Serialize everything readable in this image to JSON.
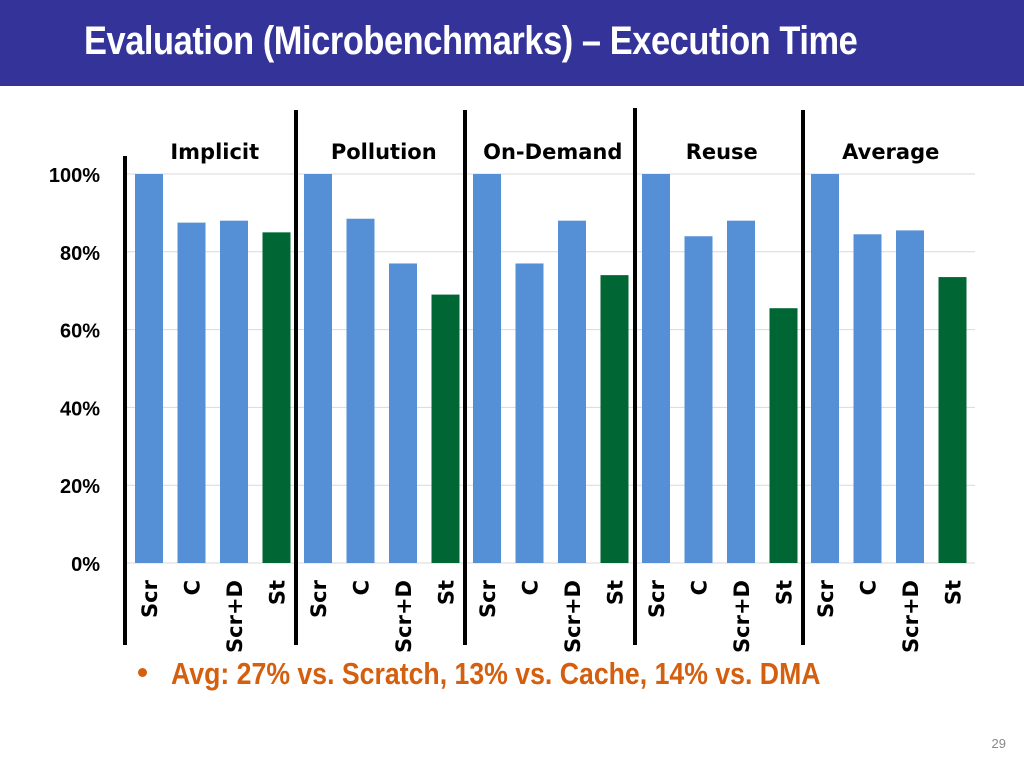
{
  "slide": {
    "title": "Evaluation (Microbenchmarks) – Execution Time",
    "bullet": "Avg: 27% vs. Scratch, 13% vs. Cache, 14% vs. DMA",
    "page_number": "29"
  },
  "colors": {
    "title_bar": "#333399",
    "bar_blue": "#5590d6",
    "bar_green": "#006633",
    "bullet_text": "#d45f0f"
  },
  "chart_data": {
    "type": "bar",
    "title": "",
    "xlabel": "",
    "ylabel": "",
    "ylim": [
      0,
      100
    ],
    "y_ticks": [
      0,
      20,
      40,
      60,
      80,
      100
    ],
    "y_tick_labels": [
      "0%",
      "20%",
      "40%",
      "60%",
      "80%",
      "100%"
    ],
    "grid": true,
    "groups": [
      {
        "name": "Implicit",
        "categories": [
          "Scr",
          "C",
          "Scr+D",
          "St"
        ],
        "values": [
          100,
          87.5,
          88,
          85
        ]
      },
      {
        "name": "Pollution",
        "categories": [
          "Scr",
          "C",
          "Scr+D",
          "St"
        ],
        "values": [
          100,
          88.5,
          77,
          69
        ]
      },
      {
        "name": "On-Demand",
        "categories": [
          "Scr",
          "C",
          "Scr+D",
          "St"
        ],
        "values": [
          100,
          77,
          88,
          74
        ]
      },
      {
        "name": "Reuse",
        "categories": [
          "Scr",
          "C",
          "Scr+D",
          "St"
        ],
        "values": [
          100,
          84,
          88,
          65.5
        ]
      },
      {
        "name": "Average",
        "categories": [
          "Scr",
          "C",
          "Scr+D",
          "St"
        ],
        "values": [
          100,
          84.5,
          85.5,
          73.5
        ]
      }
    ]
  }
}
